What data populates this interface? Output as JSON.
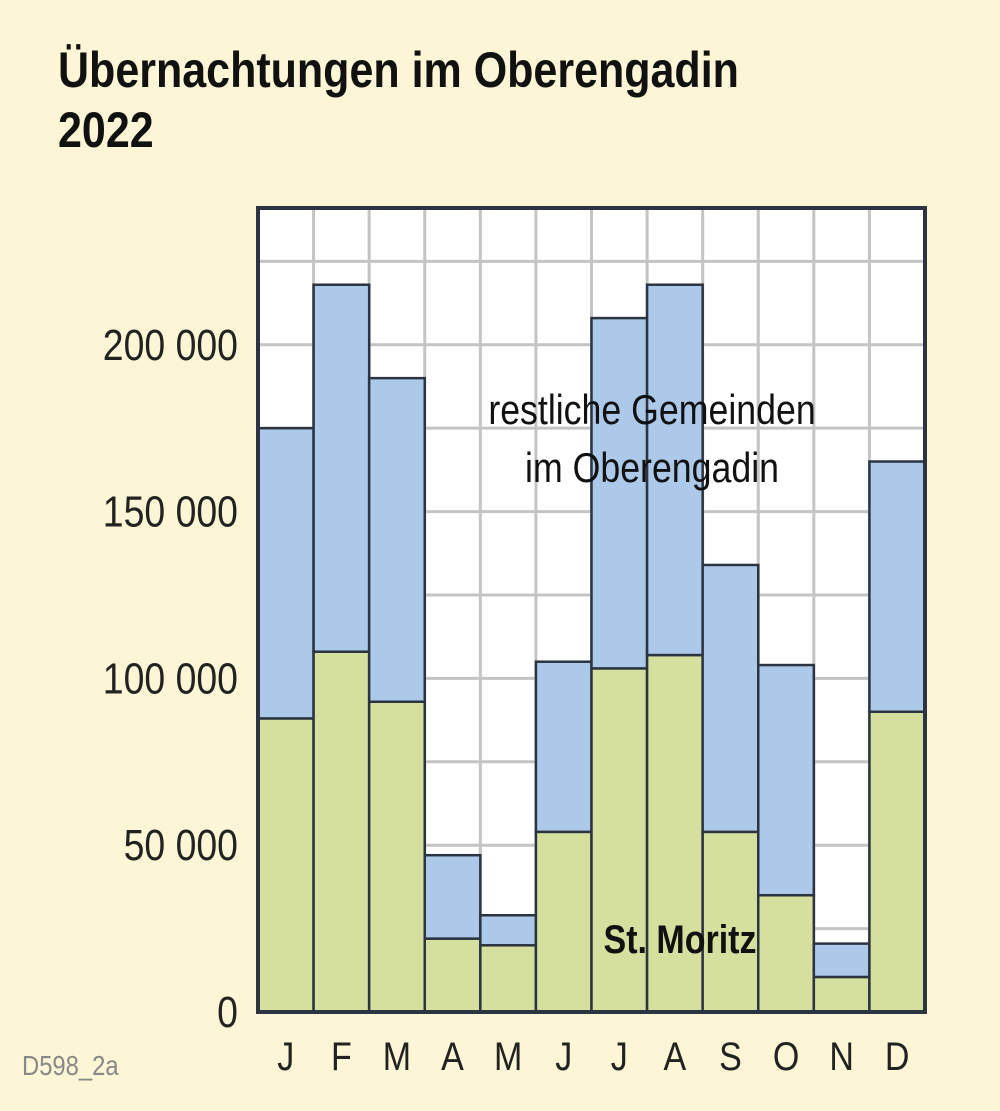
{
  "title_line1": "Übernachtungen im Oberengadin",
  "title_line2": "2022",
  "source_code": "D598_2a",
  "chart_data": {
    "type": "bar",
    "stacked": true,
    "categories": [
      "J",
      "F",
      "M",
      "A",
      "M",
      "J",
      "J",
      "A",
      "S",
      "O",
      "N",
      "D"
    ],
    "series": [
      {
        "name": "St. Moritz",
        "color": "#d5df9e",
        "values": [
          88000,
          108000,
          93000,
          22000,
          20000,
          54000,
          103000,
          107000,
          54000,
          35000,
          10500,
          90000
        ]
      },
      {
        "name": "restliche Gemeinden im Oberengadin",
        "color": "#adc9ea",
        "values": [
          87000,
          110000,
          97000,
          25000,
          9000,
          51000,
          105000,
          111000,
          80000,
          69000,
          10000,
          75000
        ]
      }
    ],
    "series_labels": {
      "green_line1": "St. Moritz",
      "blue_line1": "restliche Gemeinden",
      "blue_line2": "im Oberengadin"
    },
    "yticks": [
      0,
      50000,
      100000,
      150000,
      200000
    ],
    "ytick_labels": [
      "0",
      "50 000",
      "100 000",
      "150 000",
      "200 000"
    ],
    "ylim": [
      0,
      241000
    ],
    "grid": true,
    "grid_step": 25000,
    "xlabel": "",
    "ylabel": ""
  }
}
